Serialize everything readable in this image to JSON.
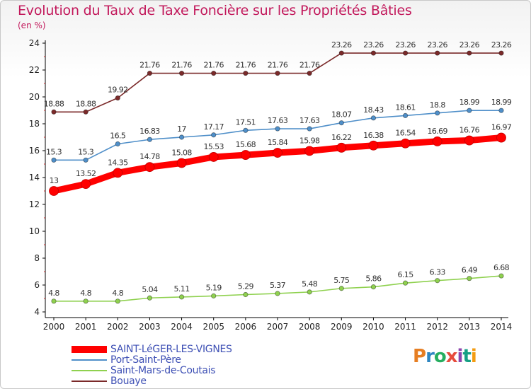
{
  "header": {
    "title": "Evolution du Taux de Taxe Foncière sur les Propriétés Bâties",
    "unit": "(en %)"
  },
  "logo": {
    "text": "Proxiti"
  },
  "colors": {
    "title": "#c2185b",
    "axis": "#000000",
    "legend_text": "#3f51b5"
  },
  "chart_data": {
    "type": "line",
    "title": "Evolution du Taux de Taxe Foncière sur les Propriétés Bâties",
    "ylabel": "(en %)",
    "xlabel": "",
    "ylim": [
      4,
      24
    ],
    "yticks": [
      4,
      6,
      8,
      10,
      12,
      14,
      16,
      18,
      20,
      22,
      24
    ],
    "grid": false,
    "legend_position": "bottom-left",
    "x": [
      "2000",
      "2001",
      "2002",
      "2003",
      "2004",
      "2005",
      "2006",
      "2007",
      "2008",
      "2009",
      "2010",
      "2011",
      "2012",
      "2013",
      "2014"
    ],
    "series": [
      {
        "name": "SAINT-LéGER-LES-VIGNES",
        "color": "#ff0000",
        "style": "thick",
        "values": [
          13,
          13.52,
          14.35,
          14.78,
          15.08,
          15.53,
          15.68,
          15.84,
          15.98,
          16.22,
          16.38,
          16.54,
          16.69,
          16.76,
          16.97
        ],
        "labels": [
          "13",
          "13.52",
          "14.35",
          "14.78",
          "15.08",
          "15.53",
          "15.68",
          "15.84",
          "15.98",
          "16.22",
          "16.38",
          "16.54",
          "16.69",
          "16.76",
          "16.97"
        ]
      },
      {
        "name": "Port-Saint-Père",
        "color": "#4f8fc9",
        "style": "thin",
        "values": [
          15.3,
          15.3,
          16.5,
          16.83,
          17,
          17.17,
          17.51,
          17.63,
          17.63,
          18.07,
          18.43,
          18.61,
          18.8,
          18.99,
          18.99
        ],
        "labels": [
          "15.3",
          "15.3",
          "16.5",
          "16.83",
          "17",
          "17.17",
          "17.51",
          "17.63",
          "17.63",
          "18.07",
          "18.43",
          "18.61",
          "18.8",
          "18.99",
          "18.99"
        ]
      },
      {
        "name": "Saint-Mars-de-Coutais",
        "color": "#8fd14f",
        "style": "thin",
        "values": [
          4.8,
          4.8,
          4.8,
          5.04,
          5.11,
          5.19,
          5.29,
          5.37,
          5.48,
          5.75,
          5.86,
          6.15,
          6.33,
          6.49,
          6.68
        ],
        "labels": [
          "4.8",
          "4.8",
          "4.8",
          "5.04",
          "5.11",
          "5.19",
          "5.29",
          "5.37",
          "5.48",
          "5.75",
          "5.86",
          "6.15",
          "6.33",
          "6.49",
          "6.68"
        ]
      },
      {
        "name": "Bouaye",
        "color": "#7b2a2a",
        "style": "thin",
        "values": [
          18.88,
          18.88,
          19.92,
          21.76,
          21.76,
          21.76,
          21.76,
          21.76,
          21.76,
          23.26,
          23.26,
          23.26,
          23.26,
          23.26,
          23.26
        ],
        "labels": [
          "18.88",
          "18.88",
          "19.92",
          "21.76",
          "21.76",
          "21.76",
          "21.76",
          "21.76",
          "21.76",
          "23.26",
          "23.26",
          "23.26",
          "23.26",
          "23.26",
          "23.26"
        ]
      }
    ]
  }
}
